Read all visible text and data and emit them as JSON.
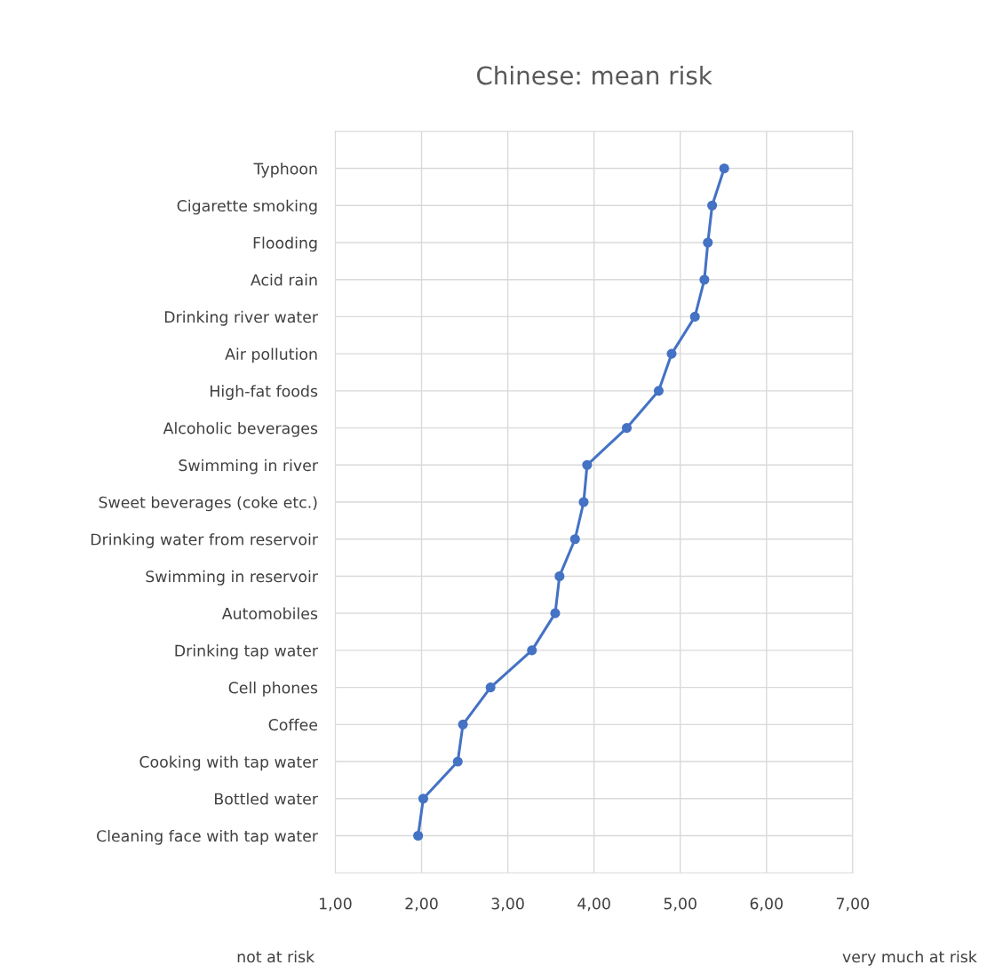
{
  "chart_data": {
    "type": "line",
    "orientation": "horizontal",
    "title": "Chinese: mean risk",
    "categories": [
      "Typhoon",
      "Cigarette smoking",
      "Flooding",
      "Acid rain",
      "Drinking river water",
      "Air pollution",
      "High-fat foods",
      "Alcoholic beverages",
      "Swimming in river",
      "Sweet beverages (coke etc.)",
      "Drinking water from reservoir",
      "Swimming in reservoir",
      "Automobiles",
      "Drinking tap water",
      "Cell phones",
      "Coffee",
      "Cooking with tap water",
      "Bottled water",
      "Cleaning face with tap water"
    ],
    "series": [
      {
        "color": "#4472c4",
        "values": [
          5.51,
          5.37,
          5.32,
          5.28,
          5.17,
          4.9,
          4.75,
          4.38,
          3.92,
          3.88,
          3.78,
          3.6,
          3.55,
          3.28,
          2.8,
          2.48,
          2.42,
          2.02,
          1.96
        ]
      }
    ],
    "xlim": [
      1,
      7
    ],
    "xticks": [
      {
        "value": 1,
        "label": "1,00"
      },
      {
        "value": 2,
        "label": "2,00"
      },
      {
        "value": 3,
        "label": "3,00"
      },
      {
        "value": 4,
        "label": "4,00"
      },
      {
        "value": 5,
        "label": "5,00"
      },
      {
        "value": 6,
        "label": "6,00"
      },
      {
        "value": 7,
        "label": "7,00"
      }
    ],
    "annotations": [
      "not at risk",
      "very much at risk"
    ],
    "grid": true,
    "marker": "circle",
    "line_style": "solid"
  }
}
